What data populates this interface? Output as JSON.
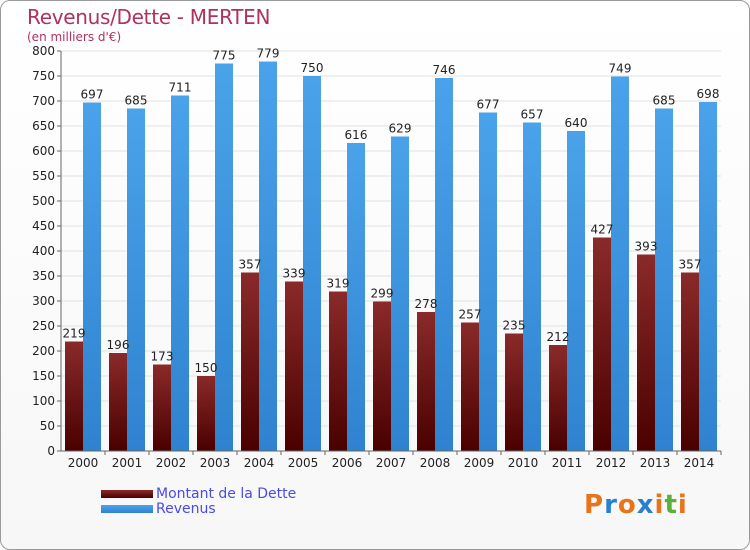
{
  "header": {
    "title": "Revenus/Dette - MERTEN",
    "subtitle": "(en milliers d'€)"
  },
  "legend": {
    "items": [
      "Montant de la Dette",
      "Revenus"
    ]
  },
  "logo": {
    "letters": [
      "P",
      "r",
      "o",
      "x",
      "i",
      "t",
      "i"
    ],
    "colors": [
      "#e8731a",
      "#2a7fd0",
      "#e8731a",
      "#2a7fd0",
      "#e8731a",
      "#5ab03c",
      "#e8731a"
    ]
  },
  "chart_data": {
    "type": "bar",
    "title": "Revenus/Dette - MERTEN",
    "subtitle": "(en milliers d'€)",
    "categories": [
      "2000",
      "2001",
      "2002",
      "2003",
      "2004",
      "2005",
      "2006",
      "2007",
      "2008",
      "2009",
      "2010",
      "2011",
      "2012",
      "2013",
      "2014"
    ],
    "series": [
      {
        "name": "Montant de la Dette",
        "color": "#7a1c1c",
        "values": [
          219,
          196,
          173,
          150,
          357,
          339,
          319,
          299,
          278,
          257,
          235,
          212,
          427,
          393,
          357
        ]
      },
      {
        "name": "Revenus",
        "color": "#3a93e0",
        "values": [
          697,
          685,
          711,
          775,
          779,
          750,
          616,
          629,
          746,
          677,
          657,
          640,
          749,
          685,
          698
        ]
      }
    ],
    "ylim": [
      0,
      800
    ],
    "yticks": [
      0,
      50,
      100,
      150,
      200,
      250,
      300,
      350,
      400,
      450,
      500,
      550,
      600,
      650,
      700,
      750,
      800
    ],
    "grid": true,
    "legend_position": "bottom-left"
  }
}
